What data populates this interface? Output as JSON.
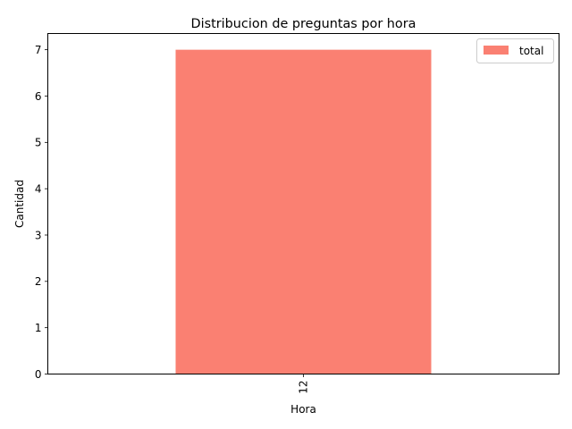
{
  "chart_data": {
    "type": "bar",
    "title": "Distribucion de preguntas por hora",
    "xlabel": "Hora",
    "ylabel": "Cantidad",
    "categories": [
      "12"
    ],
    "series": [
      {
        "name": "total",
        "values": [
          7
        ],
        "color": "#fa8072"
      }
    ],
    "ylim": [
      0,
      7.35
    ],
    "yticks": [
      0,
      1,
      2,
      3,
      4,
      5,
      6,
      7
    ],
    "grid": false,
    "legend_position": "top-right"
  }
}
